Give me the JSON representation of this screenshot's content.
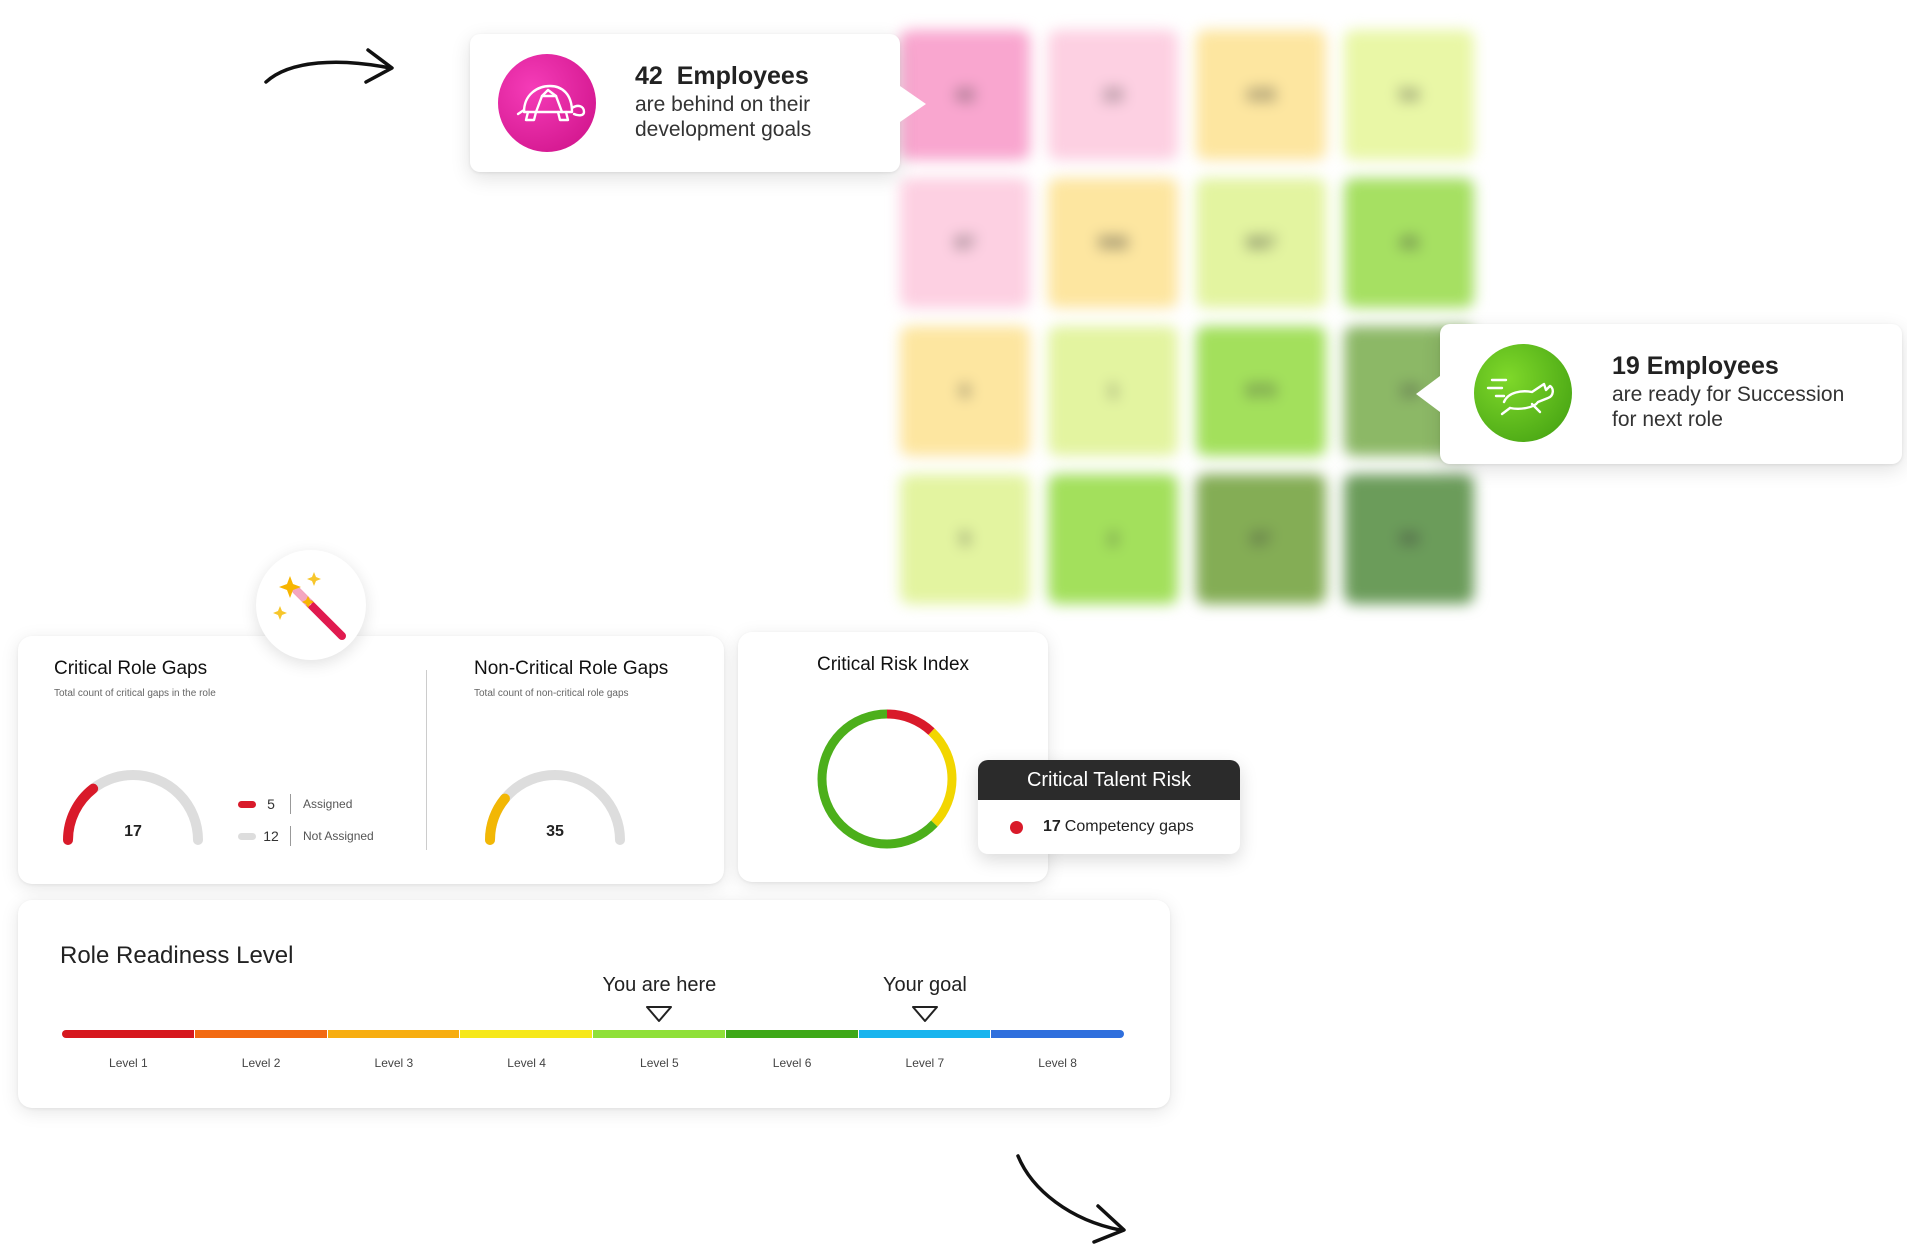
{
  "colors": {
    "turtle_badge": "#e8179a",
    "rabbit_badge": "#5bbf1c",
    "critical": "#d91a2a",
    "warning": "#f2b705",
    "healthy": "#4caf1b",
    "gauge_track": "#dddddd"
  },
  "heatmap": {
    "values": [
      [
        "42",
        "23",
        "435",
        "54"
      ],
      [
        "87",
        "998",
        "987",
        "45"
      ],
      [
        "6",
        "1",
        "970",
        "19"
      ],
      [
        "5",
        "2",
        "87",
        "98"
      ]
    ],
    "colors": [
      [
        "#f9a6cf",
        "#fdd0e2",
        "#fde6a0",
        "#e9f7a6"
      ],
      [
        "#fdd0e2",
        "#fde6a0",
        "#e3f4a0",
        "#a6e062"
      ],
      [
        "#fde6a0",
        "#e3f4a0",
        "#a3e05c",
        "#8cb866"
      ],
      [
        "#e3f4a0",
        "#a3e05c",
        "#84ad55",
        "#6b9c5a"
      ]
    ]
  },
  "callout_behind": {
    "icon": "turtle-icon",
    "count": "42",
    "count_label": "Employees",
    "line1": "are behind on their",
    "line2": "development goals"
  },
  "callout_succession": {
    "icon": "rabbit-icon",
    "title": "19 Employees",
    "line1": "are ready for Succession",
    "line2": "for next role"
  },
  "role_gaps": {
    "icon": "magic-wand-icon",
    "critical": {
      "title": "Critical Role Gaps",
      "subtitle": "Total count of critical gaps in the role",
      "value": "17",
      "assigned_value": "5",
      "not_assigned_value": "12",
      "assigned_label": "Assigned",
      "not_assigned_label": "Not Assigned",
      "fraction": 0.29
    },
    "non_critical": {
      "title": "Non-Critical Role Gaps",
      "subtitle": "Total count of non-critical role gaps",
      "value": "35",
      "fraction": 0.22
    }
  },
  "risk_index": {
    "title": "Critical Risk Index",
    "segments": [
      {
        "color": "#d91a2a",
        "fraction": 0.12
      },
      {
        "color": "#f2d600",
        "fraction": 0.25
      },
      {
        "color": "#4caf1b",
        "fraction": 0.63
      }
    ],
    "tooltip": {
      "title": "Critical Talent Risk",
      "value": "17",
      "label": "Competency gaps"
    }
  },
  "readiness": {
    "title": "Role Readiness Level",
    "current_label": "You are here",
    "goal_label": "Your goal",
    "current_level": 5,
    "goal_level": 7,
    "levels": [
      {
        "label": "Level 1",
        "color": "#d6171e"
      },
      {
        "label": "Level 2",
        "color": "#f26a12"
      },
      {
        "label": "Level 3",
        "color": "#f7ad10"
      },
      {
        "label": "Level 4",
        "color": "#f6e81a"
      },
      {
        "label": "Level 5",
        "color": "#8fe039"
      },
      {
        "label": "Level 6",
        "color": "#3ea818"
      },
      {
        "label": "Level 7",
        "color": "#19b4ee"
      },
      {
        "label": "Level 8",
        "color": "#2f6fdd"
      }
    ]
  }
}
